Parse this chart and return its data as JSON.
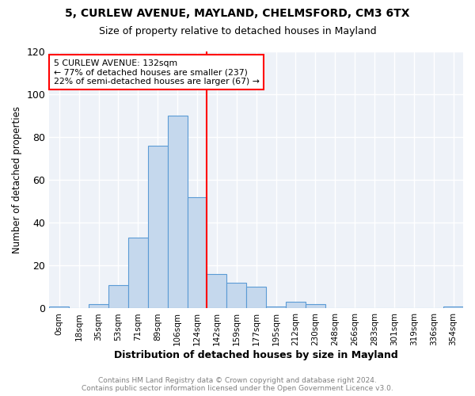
{
  "title_line1": "5, CURLEW AVENUE, MAYLAND, CHELMSFORD, CM3 6TX",
  "title_line2": "Size of property relative to detached houses in Mayland",
  "xlabel": "Distribution of detached houses by size in Mayland",
  "ylabel": "Number of detached properties",
  "footnote": "Contains HM Land Registry data © Crown copyright and database right 2024.\nContains public sector information licensed under the Open Government Licence v3.0.",
  "bin_labels": [
    "0sqm",
    "18sqm",
    "35sqm",
    "53sqm",
    "71sqm",
    "89sqm",
    "106sqm",
    "124sqm",
    "142sqm",
    "159sqm",
    "177sqm",
    "195sqm",
    "212sqm",
    "230sqm",
    "248sqm",
    "266sqm",
    "283sqm",
    "301sqm",
    "319sqm",
    "336sqm",
    "354sqm"
  ],
  "bar_heights": [
    1,
    0,
    2,
    11,
    33,
    76,
    90,
    52,
    16,
    12,
    10,
    1,
    3,
    2,
    0,
    0,
    0,
    0,
    0,
    0,
    1
  ],
  "bar_color": "#c5d8ed",
  "bar_edge_color": "#5b9bd5",
  "vline_x": 7.5,
  "vline_color": "red",
  "ylim": [
    0,
    120
  ],
  "annotation_text": "5 CURLEW AVENUE: 132sqm\n← 77% of detached houses are smaller (237)\n22% of semi-detached houses are larger (67) →",
  "annotation_box_color": "white",
  "annotation_box_edge_color": "red",
  "background_color": "#eef2f8"
}
